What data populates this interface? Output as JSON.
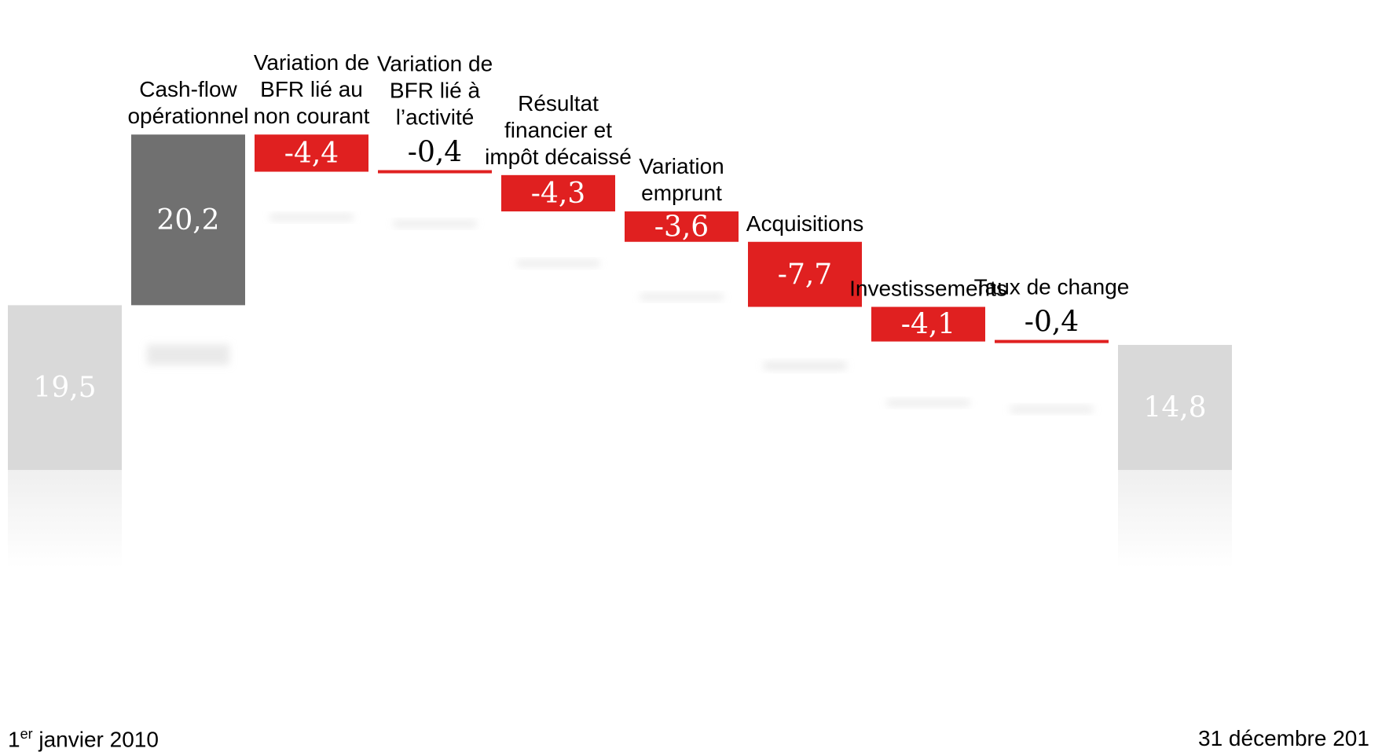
{
  "chart_data": {
    "type": "waterfall",
    "start": {
      "value": 19.5,
      "label": "19,5"
    },
    "end": {
      "value": 14.8,
      "label": "14,8"
    },
    "steps": [
      {
        "category": "Cash-flow opérationnel",
        "lines": [
          "Cash-flow",
          "opérationnel"
        ],
        "value": 20.2,
        "label": "20,2",
        "kind": "positive"
      },
      {
        "category": "Variation de BFR lié au non courant",
        "lines": [
          "Variation de",
          "BFR lié au",
          "non courant"
        ],
        "value": -4.4,
        "label": "-4,4",
        "kind": "negative"
      },
      {
        "category": "Variation de BFR lié à l'activité",
        "lines": [
          "Variation de",
          "BFR lié à",
          "l’activité"
        ],
        "value": -0.4,
        "label": "-0,4",
        "kind": "negative"
      },
      {
        "category": "Résultat financier et impôt décaissé",
        "lines": [
          "Résultat",
          "financier et",
          "impôt décaissé"
        ],
        "value": -4.3,
        "label": "-4,3",
        "kind": "negative"
      },
      {
        "category": "Variation emprunt",
        "lines": [
          "Variation",
          "emprunt"
        ],
        "value": -3.6,
        "label": "-3,6",
        "kind": "negative"
      },
      {
        "category": "Acquisitions",
        "lines": [
          "Acquisitions"
        ],
        "value": -7.7,
        "label": "-7,7",
        "kind": "negative"
      },
      {
        "category": "Investissements",
        "lines": [
          "Investissements"
        ],
        "value": -4.1,
        "label": "-4,1",
        "kind": "negative"
      },
      {
        "category": "Taux de change",
        "lines": [
          "Taux de change"
        ],
        "value": -0.4,
        "label": "-0,4",
        "kind": "negative"
      }
    ],
    "colors": {
      "endpoint": "#d9d9d9",
      "positive": "#707070",
      "negative": "#e02020",
      "endpoint_text": "#ffffff",
      "bar_text": "#ffffff",
      "small_text": "#000000"
    }
  },
  "footer": {
    "start_prefix": "1",
    "start_sup": "er",
    "start_rest": " janvier 2010",
    "end_label": "31 décembre 201"
  }
}
